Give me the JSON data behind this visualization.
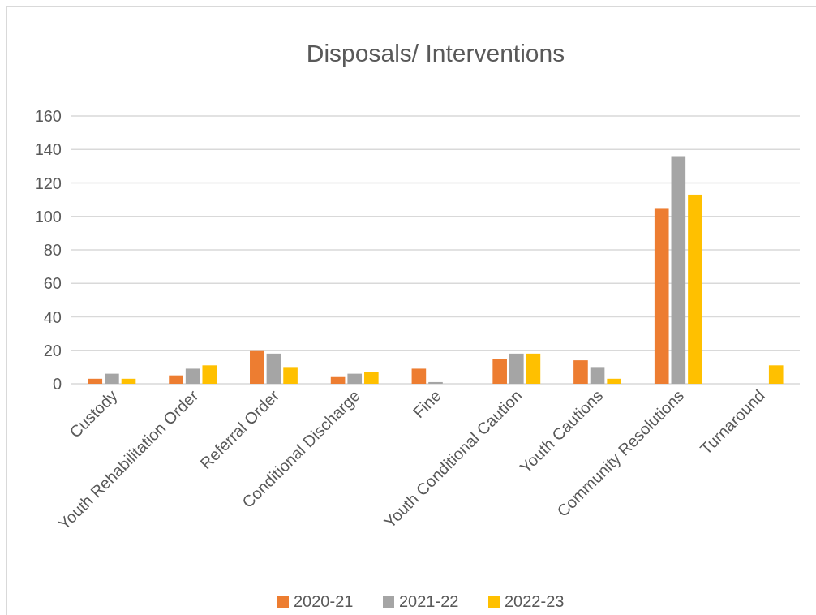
{
  "chart_data": {
    "type": "bar",
    "title": "Disposals/ Interventions",
    "categories": [
      "Custody",
      "Youth Rehabilitation Order",
      "Referral Order",
      "Conditional Discharge",
      "Fine",
      "Youth Conditional Caution",
      "Youth Cautions",
      "Community Resolutions",
      "Turnaround"
    ],
    "series": [
      {
        "name": "2020-21",
        "color": "#ed7d31",
        "values": [
          3,
          5,
          20,
          4,
          9,
          15,
          14,
          105,
          null
        ]
      },
      {
        "name": "2021-22",
        "color": "#a5a5a5",
        "values": [
          6,
          9,
          18,
          6,
          1,
          18,
          10,
          136,
          null
        ]
      },
      {
        "name": "2022-23",
        "color": "#ffc000",
        "values": [
          3,
          11,
          10,
          7,
          null,
          18,
          3,
          113,
          11
        ]
      }
    ],
    "ylim": [
      0,
      160
    ],
    "yticks": [
      0,
      20,
      40,
      60,
      80,
      100,
      120,
      140,
      160
    ],
    "grid": "y",
    "legend": "bottom"
  }
}
